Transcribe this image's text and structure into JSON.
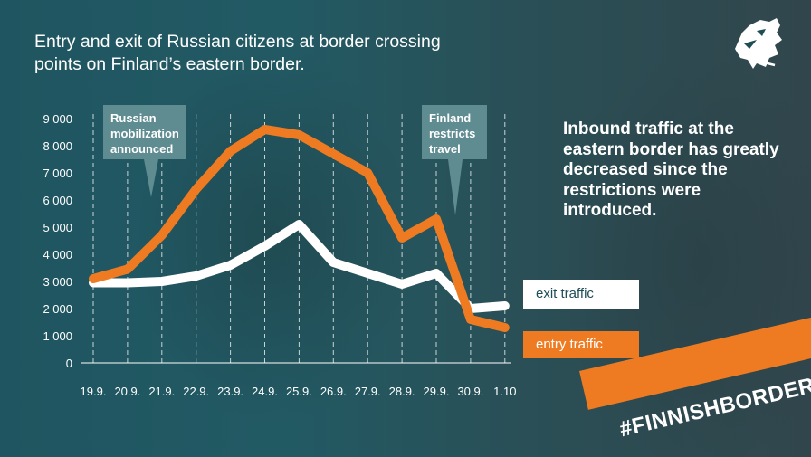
{
  "title": "Entry and exit of Russian citizens at border crossing points on Finland’s eastern border.",
  "right_text": "Inbound traffic at the eastern border has greatly decreased since the restrictions were introduced.",
  "hashtag": "#FINNISHBORDER",
  "logo_icon": "lion-head-logo-icon",
  "colors": {
    "background": "#1f4d55",
    "entry": "#ee7b22",
    "exit": "#ffffff",
    "callout": "#5f8c91"
  },
  "chart_data": {
    "type": "line",
    "title": "",
    "xlabel": "",
    "ylabel": "",
    "ylim": [
      0,
      9000
    ],
    "grid": "vertical dashed",
    "categories": [
      "19.9.",
      "20.9.",
      "21.9.",
      "22.9.",
      "23.9.",
      "24.9.",
      "25.9.",
      "26.9.",
      "27.9.",
      "28.9.",
      "29.9.",
      "30.9.",
      "1.10"
    ],
    "yticks": [
      "9 000",
      "8 000",
      "7 000",
      "6 000",
      "5 000",
      "4 000",
      "3 000",
      "2 000",
      "1 000",
      "0"
    ],
    "yticks_values": [
      9000,
      8000,
      7000,
      6000,
      5000,
      4000,
      3000,
      2000,
      1000,
      0
    ],
    "series": [
      {
        "name": "exit traffic",
        "color": "#ffffff",
        "values": [
          2950,
          2950,
          3000,
          3200,
          3600,
          4300,
          5100,
          3700,
          3300,
          2900,
          3300,
          2000,
          2100
        ]
      },
      {
        "name": "entry traffic",
        "color": "#ee7b22",
        "values": [
          3100,
          3450,
          4700,
          6400,
          7800,
          8600,
          8400,
          7700,
          7000,
          4600,
          5300,
          1600,
          1300
        ]
      }
    ],
    "annotations": [
      {
        "label": "Russian mobilization announced",
        "x": "21.9."
      },
      {
        "label": "Finland restricts travel",
        "x": "30.9."
      }
    ]
  }
}
